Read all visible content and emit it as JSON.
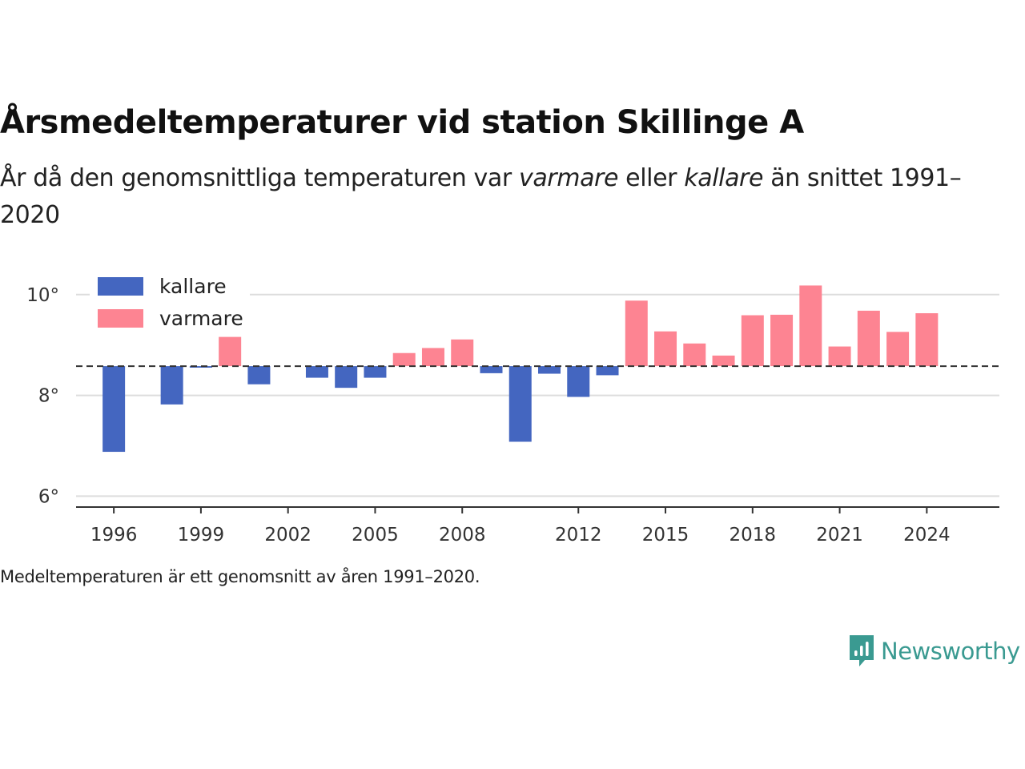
{
  "title": "Årsmedeltemperaturer vid station Skillinge A",
  "subtitle": {
    "part1": "År då den genomsnittliga temperaturen var ",
    "warm_word": "varmare",
    "part2": " eller ",
    "cold_word": "kallare",
    "part3": " än snittet 1991–2020"
  },
  "note": "Medeltemperaturen är ett genomsnitt av åren 1991–2020.",
  "brand": "Newsworthy",
  "colors": {
    "colder": "#4466c0",
    "warmer": "#fd8492",
    "grid": "#dddddd",
    "axis": "#333333",
    "reference": "#333333",
    "brand": "#3a9a91"
  },
  "chart_data": {
    "type": "bar",
    "baseline": 8.58,
    "ylim": [
      5.8,
      10.6
    ],
    "yticks": [
      6,
      8,
      10
    ],
    "ytick_labels": [
      "6°",
      "8°",
      "10°"
    ],
    "xlim": [
      1994.7,
      2026.5
    ],
    "xticks": [
      1996,
      1999,
      2002,
      2005,
      2008,
      2012,
      2015,
      2018,
      2021,
      2024
    ],
    "xtick_labels": [
      "1996",
      "1999",
      "2002",
      "2005",
      "2008",
      "2012",
      "2015",
      "2018",
      "2021",
      "2024"
    ],
    "grid": true,
    "legend_position": "top-left",
    "legend": [
      {
        "key": "colder",
        "label": "kallare"
      },
      {
        "key": "warmer",
        "label": "varmare"
      }
    ],
    "x": [
      1996,
      1998,
      1999,
      2000,
      2001,
      2003,
      2004,
      2005,
      2006,
      2007,
      2008,
      2009,
      2010,
      2011,
      2012,
      2013,
      2014,
      2015,
      2016,
      2017,
      2018,
      2019,
      2020,
      2021,
      2022,
      2023,
      2024
    ],
    "values": [
      6.88,
      7.82,
      8.55,
      9.16,
      8.22,
      8.35,
      8.15,
      8.35,
      8.84,
      8.94,
      9.11,
      8.44,
      7.08,
      8.43,
      7.97,
      8.4,
      9.88,
      9.27,
      9.03,
      8.79,
      9.59,
      9.6,
      10.18,
      8.97,
      9.68,
      9.26,
      9.63
    ]
  }
}
